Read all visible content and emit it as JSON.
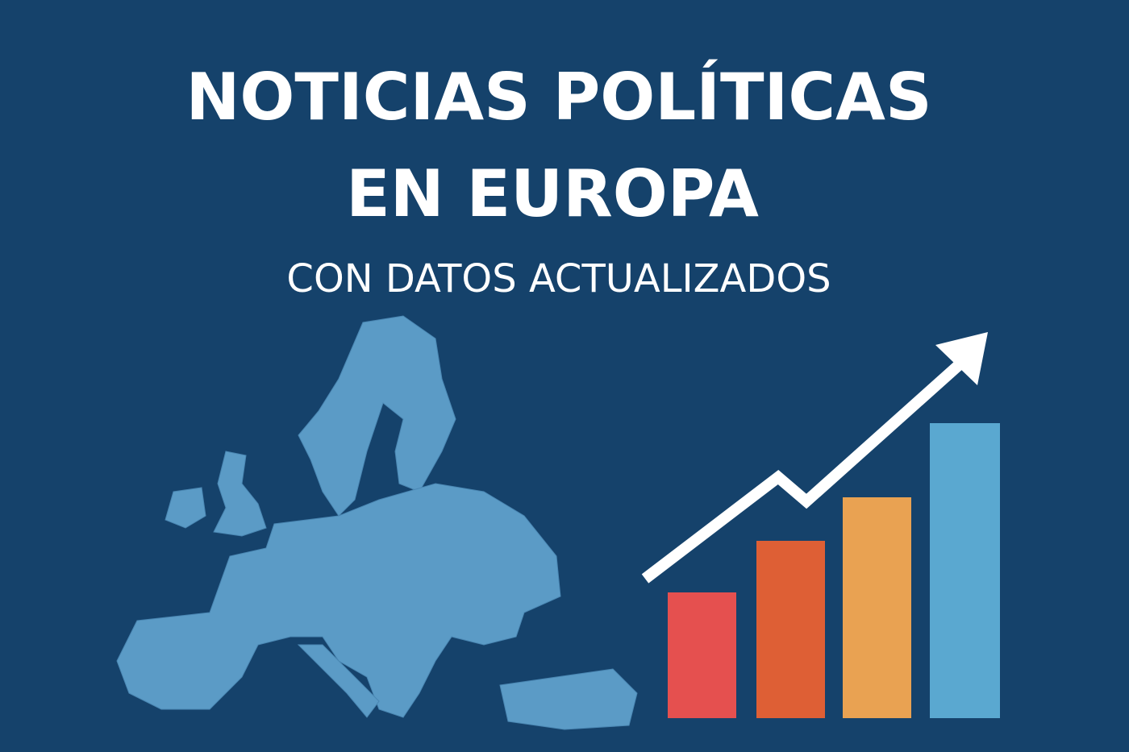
{
  "header": {
    "title_lines": [
      "NOTICIAS POLÍTICAS",
      "EN EUROPA"
    ],
    "subtitle": "CON DATOS ACTUALIZADOS"
  }
}
